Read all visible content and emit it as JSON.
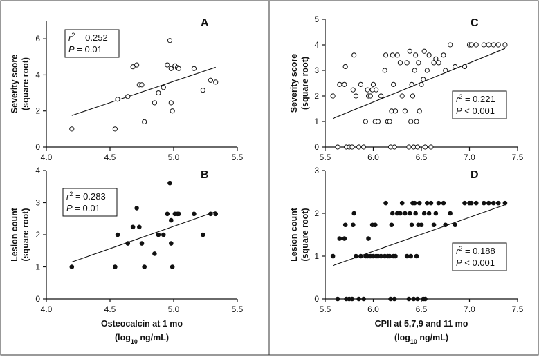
{
  "chart_data": [
    {
      "panel": "A",
      "type": "scatter",
      "marker": "open-circle",
      "ylabel": [
        "Severity score",
        "(square root)"
      ],
      "xlim": [
        4.0,
        5.5
      ],
      "ylim": [
        0,
        7
      ],
      "xticks": [
        "4.0",
        "4.5",
        "5.0",
        "5.5"
      ],
      "yticks": [
        "0",
        "2",
        "4",
        "6"
      ],
      "stats": {
        "r2": "= 0.252",
        "p": "= 0.01"
      },
      "fit": [
        [
          4.2,
          1.75
        ],
        [
          5.33,
          4.42
        ]
      ],
      "points": [
        [
          4.2,
          1.0
        ],
        [
          4.54,
          1.0
        ],
        [
          4.56,
          2.65
        ],
        [
          4.64,
          2.8
        ],
        [
          4.68,
          4.45
        ],
        [
          4.71,
          4.55
        ],
        [
          4.73,
          3.45
        ],
        [
          4.75,
          3.45
        ],
        [
          4.77,
          1.4
        ],
        [
          4.85,
          2.45
        ],
        [
          4.88,
          3.0
        ],
        [
          4.92,
          3.3
        ],
        [
          4.95,
          4.55
        ],
        [
          4.97,
          5.9
        ],
        [
          4.98,
          2.45
        ],
        [
          4.99,
          2.0
        ],
        [
          4.98,
          4.35
        ],
        [
          5.01,
          4.5
        ],
        [
          5.03,
          4.4
        ],
        [
          5.04,
          4.35
        ],
        [
          5.16,
          4.35
        ],
        [
          5.23,
          3.15
        ],
        [
          5.29,
          3.7
        ],
        [
          5.33,
          3.6
        ]
      ]
    },
    {
      "panel": "B",
      "type": "scatter",
      "marker": "filled-circle",
      "ylabel": [
        "Lesion count",
        "(square root)"
      ],
      "xlabel": [
        "Osteocalcin at 1 mo",
        "(log10 ng/mL)"
      ],
      "xlim": [
        4.0,
        5.5
      ],
      "ylim": [
        0,
        4
      ],
      "xticks": [
        "4.0",
        "4.5",
        "5.0",
        "5.5"
      ],
      "yticks": [
        "0",
        "1",
        "2",
        "3",
        "4"
      ],
      "stats": {
        "r2": "= 0.283",
        "p": "= 0.01"
      },
      "fit": [
        [
          4.2,
          1.15
        ],
        [
          5.33,
          2.72
        ]
      ],
      "points": [
        [
          4.2,
          1.0
        ],
        [
          4.54,
          1.0
        ],
        [
          4.56,
          2.0
        ],
        [
          4.64,
          1.73
        ],
        [
          4.68,
          2.24
        ],
        [
          4.71,
          2.83
        ],
        [
          4.73,
          2.24
        ],
        [
          4.75,
          1.73
        ],
        [
          4.77,
          1.0
        ],
        [
          4.85,
          1.41
        ],
        [
          4.88,
          2.0
        ],
        [
          4.92,
          2.0
        ],
        [
          4.95,
          2.65
        ],
        [
          4.97,
          3.61
        ],
        [
          4.98,
          1.73
        ],
        [
          4.99,
          1.0
        ],
        [
          4.98,
          2.45
        ],
        [
          5.01,
          2.65
        ],
        [
          5.03,
          2.65
        ],
        [
          5.04,
          2.65
        ],
        [
          5.16,
          2.65
        ],
        [
          5.23,
          2.0
        ],
        [
          5.29,
          2.65
        ],
        [
          5.33,
          2.65
        ]
      ]
    },
    {
      "panel": "C",
      "type": "scatter",
      "marker": "open-circle",
      "ylabel": [
        "Severity score",
        "(square root)"
      ],
      "xlim": [
        5.5,
        7.5
      ],
      "ylim": [
        0,
        5
      ],
      "xticks": [
        "5.5",
        "6.0",
        "6.5",
        "7.0",
        "7.5"
      ],
      "yticks": [
        "0",
        "1",
        "2",
        "3",
        "4",
        "5"
      ],
      "stats": {
        "r2": "= 0.221",
        "p": "< 0.001"
      },
      "fit": [
        [
          5.58,
          1.12
        ],
        [
          7.37,
          3.86
        ]
      ],
      "points": [
        [
          5.58,
          2.0
        ],
        [
          5.63,
          0
        ],
        [
          5.65,
          2.45
        ],
        [
          5.7,
          2.45
        ],
        [
          5.71,
          3.15
        ],
        [
          5.72,
          0
        ],
        [
          5.75,
          0
        ],
        [
          5.78,
          0
        ],
        [
          5.79,
          2.24
        ],
        [
          5.8,
          3.6
        ],
        [
          5.82,
          2.0
        ],
        [
          5.85,
          0
        ],
        [
          5.87,
          2.45
        ],
        [
          5.9,
          0
        ],
        [
          5.92,
          1.0
        ],
        [
          5.94,
          2.24
        ],
        [
          5.95,
          2.0
        ],
        [
          5.97,
          2.0
        ],
        [
          5.99,
          2.24
        ],
        [
          6.0,
          2.45
        ],
        [
          6.02,
          1.0
        ],
        [
          6.03,
          2.24
        ],
        [
          6.05,
          1.0
        ],
        [
          6.08,
          2.0
        ],
        [
          6.12,
          3.0
        ],
        [
          6.13,
          3.6
        ],
        [
          6.15,
          1.0
        ],
        [
          6.17,
          1.0
        ],
        [
          6.18,
          0
        ],
        [
          6.19,
          1.41
        ],
        [
          6.2,
          3.6
        ],
        [
          6.21,
          2.45
        ],
        [
          6.22,
          0
        ],
        [
          6.23,
          1.41
        ],
        [
          6.25,
          3.6
        ],
        [
          6.28,
          3.3
        ],
        [
          6.3,
          2.0
        ],
        [
          6.33,
          1.41
        ],
        [
          6.35,
          3.3
        ],
        [
          6.37,
          0
        ],
        [
          6.38,
          3.75
        ],
        [
          6.39,
          1.0
        ],
        [
          6.4,
          2.45
        ],
        [
          6.41,
          2.0
        ],
        [
          6.42,
          0
        ],
        [
          6.43,
          3.0
        ],
        [
          6.44,
          3.6
        ],
        [
          6.45,
          1.0
        ],
        [
          6.46,
          0
        ],
        [
          6.47,
          3.3
        ],
        [
          6.48,
          1.41
        ],
        [
          6.5,
          2.45
        ],
        [
          6.52,
          2.65
        ],
        [
          6.53,
          3.75
        ],
        [
          6.54,
          0
        ],
        [
          6.56,
          3.0
        ],
        [
          6.58,
          3.6
        ],
        [
          6.6,
          0
        ],
        [
          6.63,
          3.3
        ],
        [
          6.65,
          3.45
        ],
        [
          6.68,
          3.3
        ],
        [
          6.73,
          3.6
        ],
        [
          6.75,
          3.0
        ],
        [
          6.8,
          4.0
        ],
        [
          6.85,
          3.15
        ],
        [
          6.95,
          3.15
        ],
        [
          7.0,
          4.0
        ],
        [
          7.02,
          4.0
        ],
        [
          7.07,
          4.0
        ],
        [
          7.15,
          4.0
        ],
        [
          7.2,
          4.0
        ],
        [
          7.25,
          4.0
        ],
        [
          7.3,
          4.0
        ],
        [
          7.37,
          4.0
        ]
      ]
    },
    {
      "panel": "D",
      "type": "scatter",
      "marker": "filled-circle",
      "ylabel": [
        "Lesion count",
        "(square root)"
      ],
      "xlabel": [
        "CPII at 5,7,9 and 11 mo",
        "(log10 ng/mL)"
      ],
      "xlim": [
        5.5,
        7.5
      ],
      "ylim": [
        0,
        3
      ],
      "xticks": [
        "5.5",
        "6.0",
        "6.5",
        "7.0",
        "7.5"
      ],
      "yticks": [
        "0",
        "1",
        "2",
        "3"
      ],
      "stats": {
        "r2": "= 0.188",
        "p": "< 0.001"
      },
      "fit": [
        [
          5.58,
          0.78
        ],
        [
          7.37,
          2.2
        ]
      ],
      "points": [
        [
          5.58,
          1.0
        ],
        [
          5.63,
          0
        ],
        [
          5.65,
          1.41
        ],
        [
          5.7,
          1.41
        ],
        [
          5.71,
          1.73
        ],
        [
          5.72,
          0
        ],
        [
          5.75,
          0
        ],
        [
          5.78,
          0
        ],
        [
          5.79,
          1.73
        ],
        [
          5.8,
          2.0
        ],
        [
          5.82,
          1.0
        ],
        [
          5.85,
          0
        ],
        [
          5.87,
          1.0
        ],
        [
          5.9,
          0
        ],
        [
          5.92,
          1.0
        ],
        [
          5.94,
          1.0
        ],
        [
          5.95,
          1.41
        ],
        [
          5.97,
          1.0
        ],
        [
          5.99,
          1.73
        ],
        [
          6.0,
          1.0
        ],
        [
          6.02,
          1.73
        ],
        [
          6.03,
          1.0
        ],
        [
          6.05,
          1.0
        ],
        [
          6.08,
          1.0
        ],
        [
          6.12,
          1.0
        ],
        [
          6.13,
          2.24
        ],
        [
          6.15,
          1.0
        ],
        [
          6.17,
          1.0
        ],
        [
          6.18,
          0
        ],
        [
          6.19,
          1.73
        ],
        [
          6.2,
          2.0
        ],
        [
          6.21,
          1.0
        ],
        [
          6.22,
          0
        ],
        [
          6.23,
          1.0
        ],
        [
          6.25,
          2.0
        ],
        [
          6.28,
          2.0
        ],
        [
          6.3,
          2.24
        ],
        [
          6.33,
          2.0
        ],
        [
          6.35,
          1.0
        ],
        [
          6.37,
          0
        ],
        [
          6.38,
          2.0
        ],
        [
          6.39,
          1.0
        ],
        [
          6.4,
          1.73
        ],
        [
          6.41,
          2.24
        ],
        [
          6.42,
          0
        ],
        [
          6.43,
          2.24
        ],
        [
          6.44,
          2.0
        ],
        [
          6.45,
          1.0
        ],
        [
          6.46,
          0
        ],
        [
          6.47,
          1.73
        ],
        [
          6.48,
          2.24
        ],
        [
          6.5,
          1.73
        ],
        [
          6.52,
          0
        ],
        [
          6.53,
          2.0
        ],
        [
          6.54,
          0
        ],
        [
          6.56,
          2.24
        ],
        [
          6.58,
          2.0
        ],
        [
          6.6,
          2.24
        ],
        [
          6.63,
          1.73
        ],
        [
          6.65,
          2.0
        ],
        [
          6.68,
          2.24
        ],
        [
          6.73,
          2.24
        ],
        [
          6.75,
          1.73
        ],
        [
          6.8,
          2.0
        ],
        [
          6.85,
          1.73
        ],
        [
          6.95,
          2.24
        ],
        [
          7.0,
          2.24
        ],
        [
          7.02,
          2.24
        ],
        [
          7.07,
          2.24
        ],
        [
          7.15,
          2.24
        ],
        [
          7.2,
          2.24
        ],
        [
          7.25,
          2.24
        ],
        [
          7.3,
          2.24
        ],
        [
          7.37,
          2.24
        ]
      ]
    }
  ]
}
